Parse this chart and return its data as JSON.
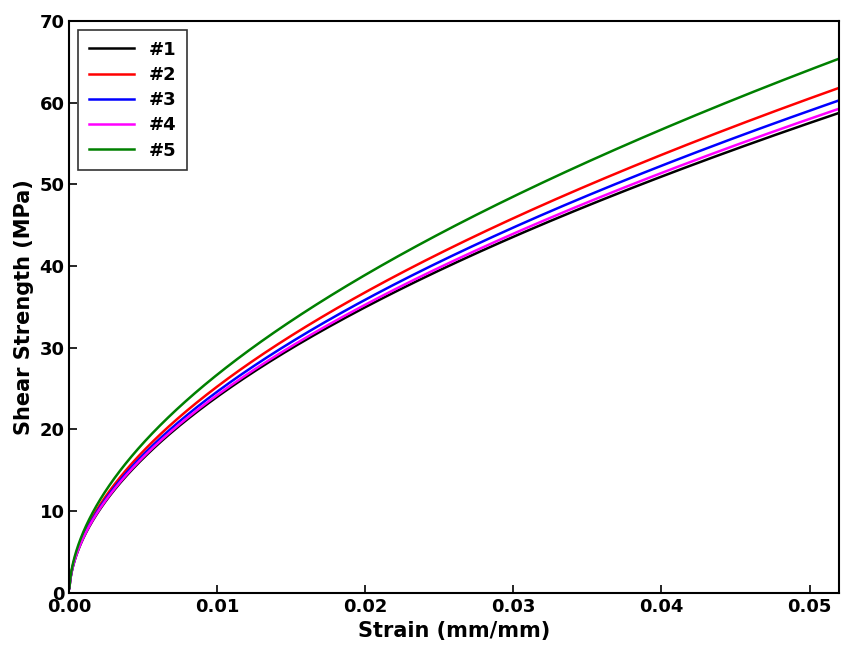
{
  "xlabel": "Strain (mm/mm)",
  "ylabel": "Shear Strength (MPa)",
  "xlim": [
    0.0,
    0.052
  ],
  "ylim": [
    0.0,
    70
  ],
  "xticks": [
    0.0,
    0.01,
    0.02,
    0.03,
    0.04,
    0.05
  ],
  "yticks": [
    0,
    10,
    20,
    30,
    40,
    50,
    60,
    70
  ],
  "series": [
    {
      "label": "#1",
      "color": "#000000",
      "A": 780.0,
      "n": 0.545
    },
    {
      "label": "#2",
      "color": "#ff0000",
      "A": 840.0,
      "n": 0.545
    },
    {
      "label": "#3",
      "color": "#0000ff",
      "A": 810.0,
      "n": 0.545
    },
    {
      "label": "#4",
      "color": "#ff00ff",
      "A": 800.0,
      "n": 0.545
    },
    {
      "label": "#5",
      "color": "#008000",
      "A": 900.0,
      "n": 0.545
    }
  ],
  "linewidth": 1.8,
  "legend_fontsize": 13,
  "axis_label_fontsize": 15,
  "tick_fontsize": 13,
  "axis_linewidth": 1.5,
  "figwidth": 8.53,
  "figheight": 6.55,
  "dpi": 100
}
